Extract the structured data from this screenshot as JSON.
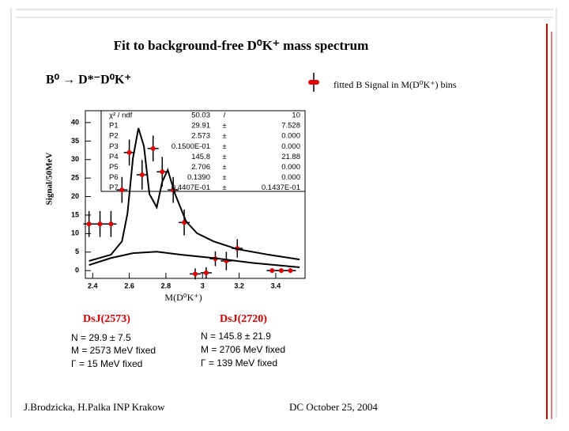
{
  "slide": {
    "title": "Fit to background-free D⁰K⁺ mass spectrum",
    "decay": "B⁰ → D*⁻D⁰K⁺",
    "left_block": {
      "heading": "DsJ(2573)",
      "lines": [
        "N = 29.9 ± 7.5",
        "M = 2573 MeV fixed",
        "Γ = 15 MeV fixed"
      ]
    },
    "right_block": {
      "heading": "DsJ(2720)",
      "lines": [
        "N = 145.8 ± 21.9",
        "M = 2706 MeV fixed",
        "Γ = 139 MeV fixed"
      ]
    },
    "footer_left": "J.Brodzicka, H.Palka INP Krakow",
    "footer_right": "DC   October 25, 2004"
  },
  "chart_data": {
    "type": "scatter",
    "y_label": "Signal/50MeV",
    "x_label": "M(D⁰K⁺)",
    "xlim": [
      2.36,
      3.56
    ],
    "ylim": [
      -2.1,
      43.2
    ],
    "xticks": [
      2.4,
      2.6,
      2.8,
      3,
      3.2,
      3.4
    ],
    "yticks": [
      0,
      5,
      10,
      15,
      20,
      25,
      30,
      35,
      40
    ],
    "series": [
      {
        "name": "fitted B Signal  in M(D⁰K⁺) bins",
        "color": "#e00000",
        "x": [
          2.38,
          2.44,
          2.5,
          2.56,
          2.6,
          2.67,
          2.73,
          2.78,
          2.84,
          2.9,
          2.96,
          3.02,
          3.07,
          3.13,
          3.19,
          3.38,
          3.43,
          3.48
        ],
        "values": [
          12.6,
          12.6,
          12.6,
          21.8,
          31.9,
          25.9,
          33.0,
          26.7,
          21.8,
          13.0,
          -0.9,
          -0.6,
          3.2,
          2.6,
          6.0,
          0,
          0,
          0
        ],
        "errors": [
          3.5,
          3.5,
          3.5,
          3.5,
          3.5,
          4,
          3.5,
          4,
          3.5,
          3.5,
          1.5,
          1.5,
          2,
          2.5,
          2.5,
          0.5,
          0.5,
          0.5
        ]
      },
      {
        "type": "line",
        "color": "#000000",
        "x": [
          2.38,
          2.5,
          2.56,
          2.59,
          2.62,
          2.65,
          2.68,
          2.71,
          2.75,
          2.78,
          2.81,
          2.85,
          2.91,
          2.97,
          3.06,
          3.19,
          3.36,
          3.53
        ],
        "values": [
          2.6,
          4.3,
          7.9,
          15.4,
          30.4,
          38.5,
          33.6,
          20.7,
          17.1,
          24.0,
          27.2,
          20.7,
          13.3,
          10.1,
          7.9,
          5.8,
          4.3,
          3.0
        ]
      },
      {
        "type": "line",
        "color": "#000000",
        "x": [
          2.38,
          2.5,
          2.62,
          2.75,
          2.88,
          3.06,
          3.27,
          3.53
        ],
        "values": [
          1.5,
          3.4,
          4.7,
          5.1,
          4.3,
          3.4,
          2.1,
          0.9
        ]
      }
    ],
    "stats": {
      "rows": [
        [
          "χ² / ndf",
          "50.03",
          "/",
          "10"
        ],
        [
          "P1",
          "29.91",
          "±",
          "7.528"
        ],
        [
          "P2",
          "2.573",
          "±",
          "0.000"
        ],
        [
          "P3",
          "0.1500E-01",
          "±",
          "0.000"
        ],
        [
          "P4",
          "145.8",
          "±",
          "21.88"
        ],
        [
          "P5",
          "2.706",
          "±",
          "0.000"
        ],
        [
          "P6",
          "0.1390",
          "±",
          "0.000"
        ],
        [
          "P7",
          "0.4407E-01",
          "±",
          "0.1437E-01"
        ]
      ]
    }
  }
}
